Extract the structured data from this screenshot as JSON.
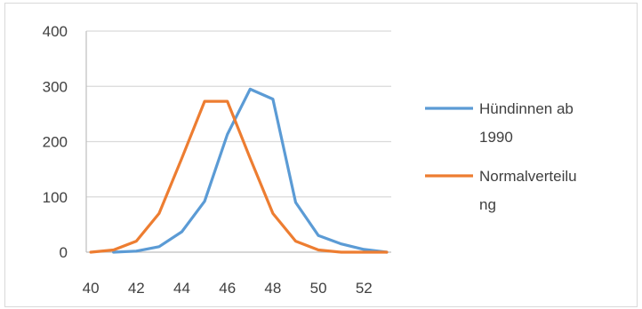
{
  "chart_data": {
    "type": "line",
    "title": "",
    "xlabel": "",
    "ylabel": "",
    "xlim": [
      39.8,
      53.2
    ],
    "ylim": [
      0,
      400
    ],
    "x_ticks": [
      40,
      42,
      44,
      46,
      48,
      50,
      52
    ],
    "y_ticks": [
      0,
      100,
      200,
      300,
      400
    ],
    "grid": "horizontal",
    "legend_position": "right",
    "series": [
      {
        "name": "Hündinnen ab 1990",
        "color": "#5b9bd5",
        "x": [
          41,
          42,
          43,
          44,
          45,
          46,
          47,
          48,
          49,
          50,
          51,
          52,
          53
        ],
        "y": [
          0,
          2,
          10,
          37,
          92,
          213,
          295,
          277,
          90,
          30,
          15,
          5,
          0
        ]
      },
      {
        "name": "Normalverteilung",
        "color": "#ed7d31",
        "x": [
          40,
          41,
          42,
          43,
          44,
          45,
          46,
          47,
          48,
          49,
          50,
          51,
          52,
          53
        ],
        "y": [
          0,
          4,
          20,
          70,
          170,
          273,
          273,
          170,
          70,
          20,
          4,
          0,
          0,
          0
        ]
      }
    ],
    "legend": {
      "entries": [
        {
          "lines": [
            "Hündinnen ab",
            "1990"
          ],
          "color": "#5b9bd5"
        },
        {
          "lines": [
            "Normalverteilu",
            "ng"
          ],
          "color": "#ed7d31"
        }
      ]
    }
  }
}
